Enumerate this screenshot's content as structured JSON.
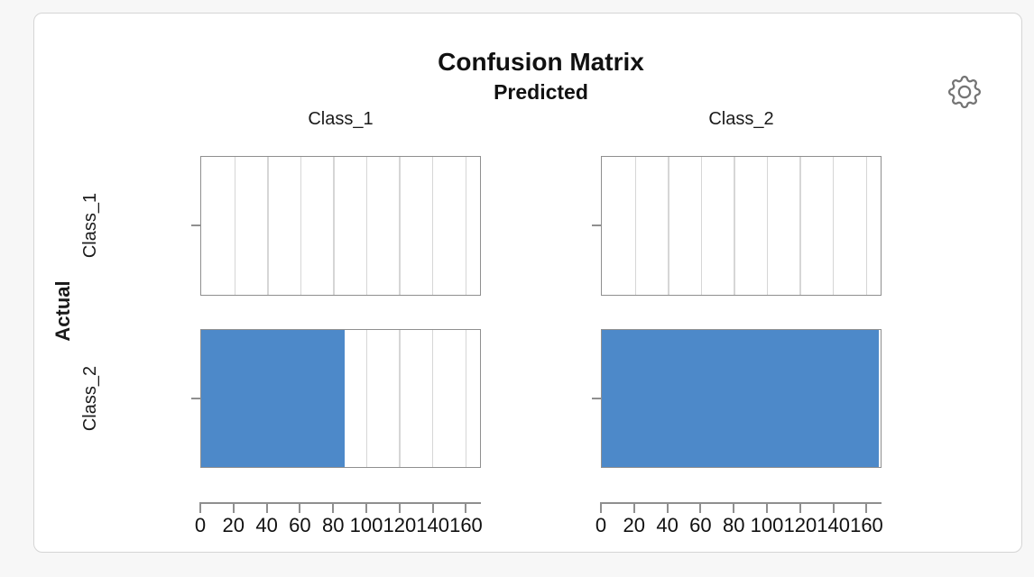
{
  "page": {
    "background_color": "#f7f7f7",
    "card_border_color": "#d5d5d5"
  },
  "toolbar": {
    "settings_icon": "gear-icon"
  },
  "chart_data": {
    "type": "bar",
    "orientation": "horizontal",
    "title": "Confusion Matrix",
    "predicted_label": "Predicted",
    "actual_label": "Actual",
    "columns": [
      "Class_1",
      "Class_2"
    ],
    "rows": [
      "Class_1",
      "Class_2"
    ],
    "matrix": [
      [
        0,
        0
      ],
      [
        87,
        168
      ]
    ],
    "cells": [
      {
        "actual": "Class_1",
        "predicted": "Class_1",
        "count": 0
      },
      {
        "actual": "Class_1",
        "predicted": "Class_2",
        "count": 0
      },
      {
        "actual": "Class_2",
        "predicted": "Class_1",
        "count": 87
      },
      {
        "actual": "Class_2",
        "predicted": "Class_2",
        "count": 168
      }
    ],
    "x_ticks": [
      0,
      20,
      40,
      60,
      80,
      100,
      120,
      140,
      160
    ],
    "xlim": [
      0,
      169
    ],
    "grid": "vertical gridlines at each x tick",
    "legend": "none",
    "bar_color": "#4d89c9"
  },
  "colors": {
    "bar": "#4d89c9",
    "panel_border": "#8f8f8f",
    "gridline": "#d6d6d6",
    "axis": "#8f8f8f",
    "text": "#111111",
    "icon": "#747474"
  }
}
